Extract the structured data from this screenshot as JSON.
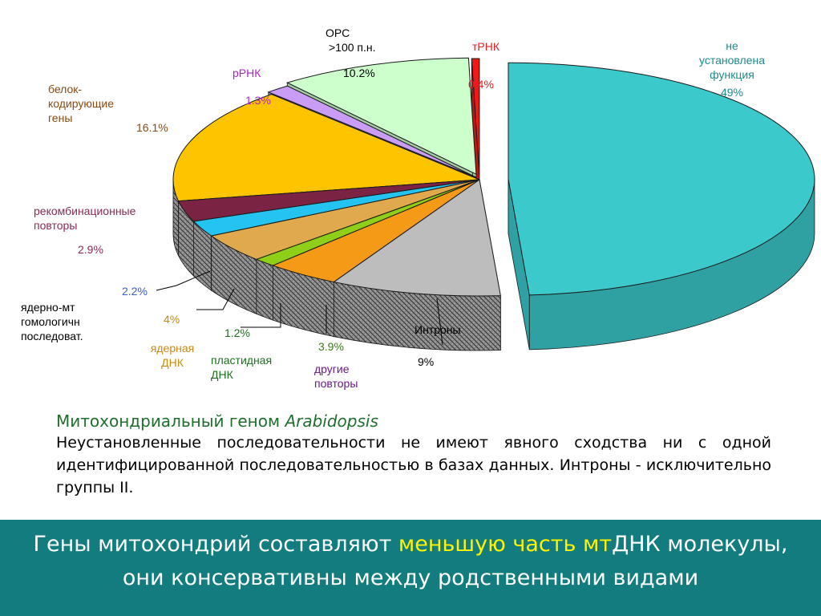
{
  "chart_data": {
    "type": "pie",
    "title": "",
    "slices": [
      {
        "key": "undetermined",
        "label_lines": [
          "не",
          "установлена",
          "функция"
        ],
        "value": 49,
        "value_label": "49%",
        "color": "#3cc9cc"
      },
      {
        "key": "introns",
        "label_lines": [
          "Интроны"
        ],
        "value": 9,
        "value_label": "9%",
        "color": "#bdbdbd"
      },
      {
        "key": "other_repeats",
        "label_lines": [
          "другие",
          "повторы"
        ],
        "value": 3.9,
        "value_label": "3.9%",
        "color": "#f59a16"
      },
      {
        "key": "plastid_dna",
        "label_lines": [
          "пластидная",
          "ДНК"
        ],
        "value": 1.2,
        "value_label": "1.2%",
        "color": "#8fcf17"
      },
      {
        "key": "nuclear_dna",
        "label_lines": [
          "ядерная",
          "ДНК"
        ],
        "value": 4,
        "value_label": "4%",
        "color": "#e0a94e"
      },
      {
        "key": "nuclear_mt_homologous",
        "label_lines": [
          "ядерно-мт",
          "гомологичн",
          "последоват."
        ],
        "value": 2.2,
        "value_label": "2.2%",
        "color": "#25c3ef"
      },
      {
        "key": "recombination_repeats",
        "label_lines": [
          "рекомбинационные",
          "повторы"
        ],
        "value": 2.9,
        "value_label": "2.9%",
        "color": "#7a2342"
      },
      {
        "key": "protein_coding_genes",
        "label_lines": [
          "белок-",
          "кодирующие",
          "гены"
        ],
        "value": 16.1,
        "value_label": "16.1%",
        "color": "#ffc400"
      },
      {
        "key": "rrna",
        "label_lines": [
          "рРНК"
        ],
        "value": 1.3,
        "value_label": "1.3%",
        "color": "#c99cf5"
      },
      {
        "key": "orf",
        "label_lines": [
          "ОРС",
          ">100 п.н."
        ],
        "value": 10.2,
        "value_label": "10.2%",
        "color": "#ccffcc"
      },
      {
        "key": "trna",
        "label_lines": [
          "тРНК"
        ],
        "value": 0.4,
        "value_label": "0.4%",
        "color": "#ee1a1a"
      }
    ]
  },
  "labels": {
    "undetermined": {
      "name_lines": [
        "не",
        "установлена",
        "функция"
      ],
      "value": "49%",
      "color": "#1f8a8c"
    },
    "introns": {
      "name": "Интроны",
      "value": "9%",
      "color": "#000000"
    },
    "other_repeats": {
      "name_lines": [
        "другие",
        "повторы"
      ],
      "value": "3.9%",
      "name_color": "#6a1b8a",
      "value_color": "#3c7a19"
    },
    "plastid_dna": {
      "name_lines": [
        "пластидная",
        "ДНК"
      ],
      "value": "1.2%",
      "color": "#1e6e1e"
    },
    "nuclear_dna": {
      "name_lines": [
        "ядерная",
        "ДНК"
      ],
      "value": "4%",
      "color": "#c98a12"
    },
    "nuclear_mt_homologous": {
      "name_lines": [
        "ядерно-мт",
        "гомологичн",
        "последоват."
      ],
      "value": "2.2%",
      "name_color": "#000000",
      "value_color": "#3b5bd6"
    },
    "recombination_repeats": {
      "name_lines": [
        "рекомбинационные",
        "повторы"
      ],
      "value": "2.9%",
      "color": "#8a2a55"
    },
    "protein_coding_genes": {
      "name_lines": [
        "белок-",
        "кодирующие",
        "гены"
      ],
      "value": "16.1%",
      "color": "#8a4a12"
    },
    "rrna": {
      "name": "рРНК",
      "value": "1.3%",
      "color": "#b021c9"
    },
    "orf": {
      "name_lines": [
        "ОРС",
        ">100 п.н."
      ],
      "value": "10.2%",
      "color": "#000000"
    },
    "trna": {
      "name": "тРНК",
      "value": "0.4%",
      "color": "#e02020"
    }
  },
  "caption": {
    "title_prefix": "Митохондриальный геном ",
    "title_italic": "Arabidopsis",
    "body": "Неустановленные последовательности  не имеют явного сходства ни с одной  идентифицированной последовательностью в базах данных. Интроны - исключительно группы II."
  },
  "banner": {
    "part1": "Гены митохондрий составляют ",
    "highlight": "меньшую часть мт",
    "part2_hl": "ДНК",
    "part3": " молекулы, они консервативны между родственными видами"
  },
  "colors": {
    "banner_bg": "#137c7e",
    "banner_text": "#ffffff",
    "banner_highlight": "#fff300",
    "caption_title": "#1f6e2c"
  }
}
